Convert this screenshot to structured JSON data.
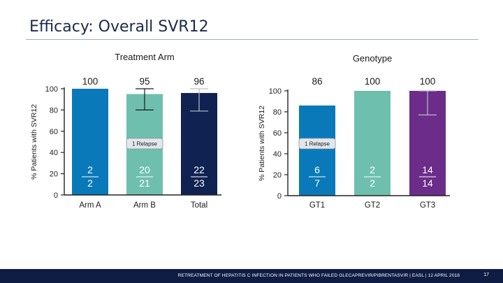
{
  "slide": {
    "title": "Efficacy: Overall SVR12",
    "footer": "RETREATMENT OF HEPATITIS C INFECTION IN PATIENTS WHO FAILED GLECAPREVIR/PIBRENTASVIR | EASL | 12 APRIL 2018",
    "page_number": "17"
  },
  "chart_data": [
    {
      "type": "bar",
      "title": "Treatment Arm",
      "ylabel": "% Patients with SVR12",
      "ylim": [
        0,
        100
      ],
      "yticks": [
        "0",
        "20",
        "40",
        "60",
        "80",
        "100"
      ],
      "categories": [
        "Arm A",
        "Arm B",
        "Total"
      ],
      "values": [
        100,
        95,
        96
      ],
      "value_labels": [
        "100",
        "95",
        "96"
      ],
      "numerators": [
        "2",
        "20",
        "22"
      ],
      "denominators": [
        "2",
        "21",
        "23"
      ],
      "error_low": [
        null,
        80,
        79
      ],
      "error_high": [
        null,
        100,
        100
      ],
      "colors": [
        "#0a79b9",
        "#6fbfae",
        "#0f2251"
      ],
      "annotation": "1 Relapse",
      "annotation_bar": 1
    },
    {
      "type": "bar",
      "title": "Genotype",
      "ylabel": "% Patients with SVR12",
      "ylim": [
        0,
        100
      ],
      "yticks": [
        "0",
        "20",
        "40",
        "60",
        "80",
        "100"
      ],
      "categories": [
        "GT1",
        "GT2",
        "GT3"
      ],
      "values": [
        86,
        100,
        100
      ],
      "value_labels": [
        "86",
        "100",
        "100"
      ],
      "numerators": [
        "6",
        "2",
        "14"
      ],
      "denominators": [
        "7",
        "2",
        "14"
      ],
      "error_low": [
        null,
        null,
        77
      ],
      "error_high": [
        null,
        null,
        100
      ],
      "colors": [
        "#0a79b9",
        "#6fbfae",
        "#6b2c8a"
      ],
      "annotation": "1 Relapse",
      "annotation_bar": 0
    }
  ]
}
